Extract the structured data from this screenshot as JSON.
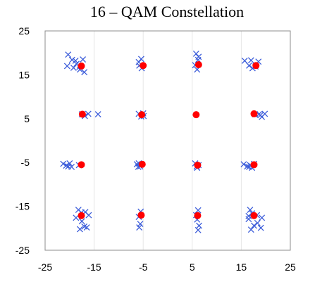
{
  "chart_data": {
    "type": "scatter",
    "title": "16 – QAM Constellation",
    "xlabel": "",
    "ylabel": "",
    "xlim": [
      -25,
      25
    ],
    "ylim": [
      -25,
      25
    ],
    "x_ticks": [
      -25,
      -15,
      -5,
      5,
      15,
      25
    ],
    "y_ticks": [
      25,
      15,
      5,
      -5,
      -15,
      -25
    ],
    "grid": true,
    "series": [
      {
        "marker": "x",
        "color": "#3a5bd9",
        "points": [
          [
            -20.3,
            19.6
          ],
          [
            -19.5,
            18.4
          ],
          [
            -20.5,
            17.0
          ],
          [
            -18.8,
            18.2
          ],
          [
            -18.0,
            16.8
          ],
          [
            -17.3,
            18.5
          ],
          [
            -17.9,
            16.2
          ],
          [
            -17.0,
            15.6
          ],
          [
            -19.2,
            16.6
          ],
          [
            -18.6,
            17.5
          ],
          [
            -5.4,
            18.6
          ],
          [
            -5.8,
            17.1
          ],
          [
            -5.3,
            16.5
          ],
          [
            -5.9,
            17.9
          ],
          [
            5.8,
            19.8
          ],
          [
            6.2,
            18.4
          ],
          [
            5.6,
            17.2
          ],
          [
            6.0,
            16.2
          ],
          [
            6.3,
            19.1
          ],
          [
            15.7,
            18.2
          ],
          [
            16.6,
            17.1
          ],
          [
            17.3,
            16.5
          ],
          [
            18.5,
            18.0
          ],
          [
            17.9,
            16.9
          ],
          [
            17.0,
            18.3
          ],
          [
            -17.5,
            6.0
          ],
          [
            -16.9,
            5.6
          ],
          [
            -16.2,
            6.1
          ],
          [
            -14.2,
            6.0
          ],
          [
            -5.9,
            6.1
          ],
          [
            -5.4,
            5.5
          ],
          [
            -5.0,
            6.2
          ],
          [
            -4.9,
            5.6
          ],
          [
            18.6,
            6.0
          ],
          [
            19.2,
            5.4
          ],
          [
            19.8,
            6.1
          ],
          [
            18.9,
            5.8
          ],
          [
            17.8,
            6.0
          ],
          [
            -21.3,
            -5.3
          ],
          [
            -20.7,
            -5.7
          ],
          [
            -20.0,
            -5.2
          ],
          [
            -19.6,
            -6.0
          ],
          [
            -20.3,
            -5.9
          ],
          [
            -18.1,
            -5.6
          ],
          [
            -6.3,
            -5.4
          ],
          [
            -6.0,
            -6.0
          ],
          [
            -5.6,
            -5.9
          ],
          [
            -5.9,
            -5.2
          ],
          [
            5.6,
            -5.2
          ],
          [
            5.9,
            -5.9
          ],
          [
            6.3,
            -5.6
          ],
          [
            6.0,
            -6.2
          ],
          [
            15.5,
            -5.4
          ],
          [
            16.2,
            -5.9
          ],
          [
            16.8,
            -5.6
          ],
          [
            17.2,
            -6.2
          ],
          [
            16.6,
            -6.0
          ],
          [
            17.6,
            -5.3
          ],
          [
            -18.2,
            -15.8
          ],
          [
            -16.8,
            -16.3
          ],
          [
            -16.1,
            -17.0
          ],
          [
            -17.5,
            -18.4
          ],
          [
            -18.7,
            -17.6
          ],
          [
            -17.0,
            -19.6
          ],
          [
            -17.9,
            -20.2
          ],
          [
            -16.5,
            -19.8
          ],
          [
            -17.6,
            -16.4
          ],
          [
            -5.5,
            -16.2
          ],
          [
            -5.9,
            -17.4
          ],
          [
            -5.6,
            -19.0
          ],
          [
            -5.8,
            -19.8
          ],
          [
            6.2,
            -15.9
          ],
          [
            5.8,
            -17.0
          ],
          [
            6.0,
            -18.0
          ],
          [
            6.4,
            -19.4
          ],
          [
            6.2,
            -20.4
          ],
          [
            16.8,
            -15.8
          ],
          [
            17.2,
            -16.6
          ],
          [
            16.5,
            -17.2
          ],
          [
            18.2,
            -17.0
          ],
          [
            19.2,
            -17.6
          ],
          [
            18.3,
            -18.8
          ],
          [
            17.6,
            -19.4
          ],
          [
            19.0,
            -19.9
          ],
          [
            17.0,
            -20.3
          ],
          [
            16.5,
            -17.9
          ]
        ]
      },
      {
        "marker": "dot",
        "color": "#ff0000",
        "points": [
          [
            -17.6,
            17.0
          ],
          [
            -5.0,
            17.1
          ],
          [
            6.3,
            17.3
          ],
          [
            18.0,
            17.1
          ],
          [
            -17.4,
            6.0
          ],
          [
            -5.3,
            5.9
          ],
          [
            5.8,
            5.9
          ],
          [
            17.6,
            6.1
          ],
          [
            -17.6,
            -5.5
          ],
          [
            -5.2,
            -5.4
          ],
          [
            6.1,
            -5.6
          ],
          [
            17.6,
            -5.5
          ],
          [
            -17.6,
            -17.1
          ],
          [
            -5.4,
            -17.0
          ],
          [
            6.1,
            -17.1
          ],
          [
            17.6,
            -17.1
          ]
        ]
      }
    ]
  }
}
